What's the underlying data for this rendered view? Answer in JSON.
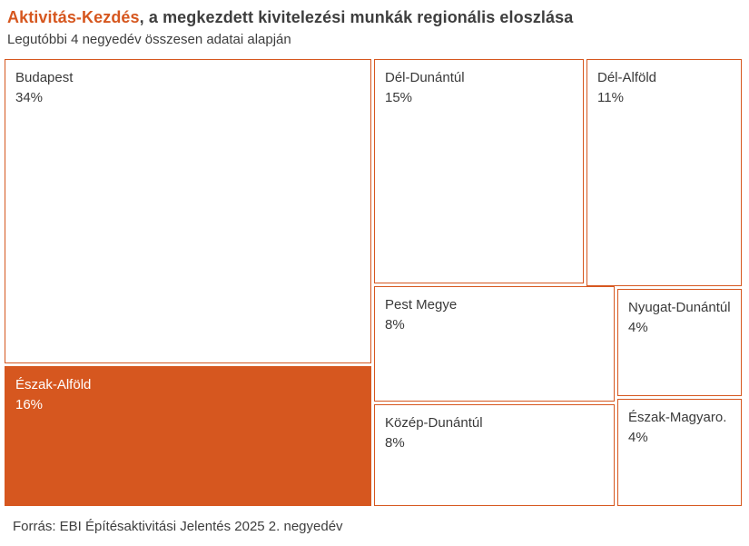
{
  "header": {
    "title_highlight": "Aktivitás-Kezdés",
    "title_rest": ", a megkezdett kivitelezési munkák regionális eloszlása",
    "subtitle": "Legutóbbi 4 negyedév összesen adatai alapján"
  },
  "footer": {
    "source": "Forrás: EBI Építésaktivitási Jelentés 2025 2. negyedév"
  },
  "colors": {
    "accent_orange": "#d6571f",
    "cell_border": "#d6571f",
    "highlight_cell_fill": "#d6571f",
    "highlight_cell_text": "#ffffff",
    "text_dark": "#3e3e3e",
    "cell_background": "#ffffff"
  },
  "chart_data": {
    "type": "treemap",
    "title": "Aktivitás-Kezdés, a megkezdett kivitelezési munkák regionális eloszlása",
    "subtitle": "Legutóbbi 4 negyedév összesen adatai alapján",
    "unit": "%",
    "source": "Forrás: EBI Építésaktivitási Jelentés 2025 2. negyedév",
    "legend": "none",
    "regions": [
      {
        "name": "Budapest",
        "value": 34,
        "label": "34%",
        "highlighted": false
      },
      {
        "name": "Észak-Alföld",
        "value": 16,
        "label": "16%",
        "highlighted": true
      },
      {
        "name": "Dél-Dunántúl",
        "value": 15,
        "label": "15%",
        "highlighted": false
      },
      {
        "name": "Dél-Alföld",
        "value": 11,
        "label": "11%",
        "highlighted": false
      },
      {
        "name": "Pest Megye",
        "value": 8,
        "label": "8%",
        "highlighted": false
      },
      {
        "name": "Közép-Dunántúl",
        "value": 8,
        "label": "8%",
        "highlighted": false
      },
      {
        "name": "Nyugat-Dunántúl",
        "value": 4,
        "label": "4%",
        "highlighted": false
      },
      {
        "name": "Észak-Magyaro.",
        "value": 4,
        "label": "4%",
        "highlighted": false
      }
    ]
  }
}
